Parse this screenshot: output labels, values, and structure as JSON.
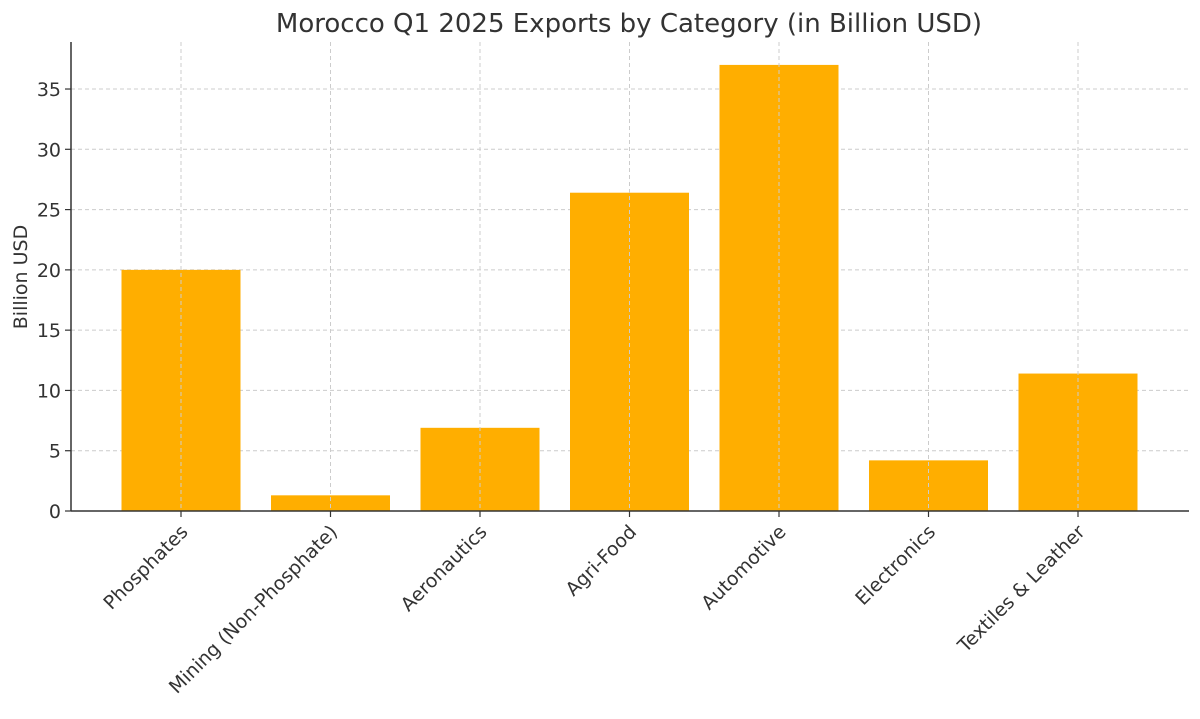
{
  "chart_data": {
    "type": "bar",
    "title": "Morocco Q1 2025 Exports by Category (in Billion USD)",
    "xlabel": "",
    "ylabel": "Billion USD",
    "categories": [
      "Phosphates",
      "Mining (Non-Phosphate)",
      "Aeronautics",
      "Agri-Food",
      "Automotive",
      "Electronics",
      "Textiles & Leather"
    ],
    "values": [
      20.0,
      1.3,
      6.9,
      26.4,
      37.0,
      4.2,
      11.4
    ],
    "ylim": [
      0,
      38.9
    ],
    "yticks": [
      0,
      5,
      10,
      15,
      20,
      25,
      30,
      35
    ],
    "grid": true,
    "bar_color": "#FFAE00",
    "grid_color": "#cccccc",
    "axis_color": "#333333"
  }
}
